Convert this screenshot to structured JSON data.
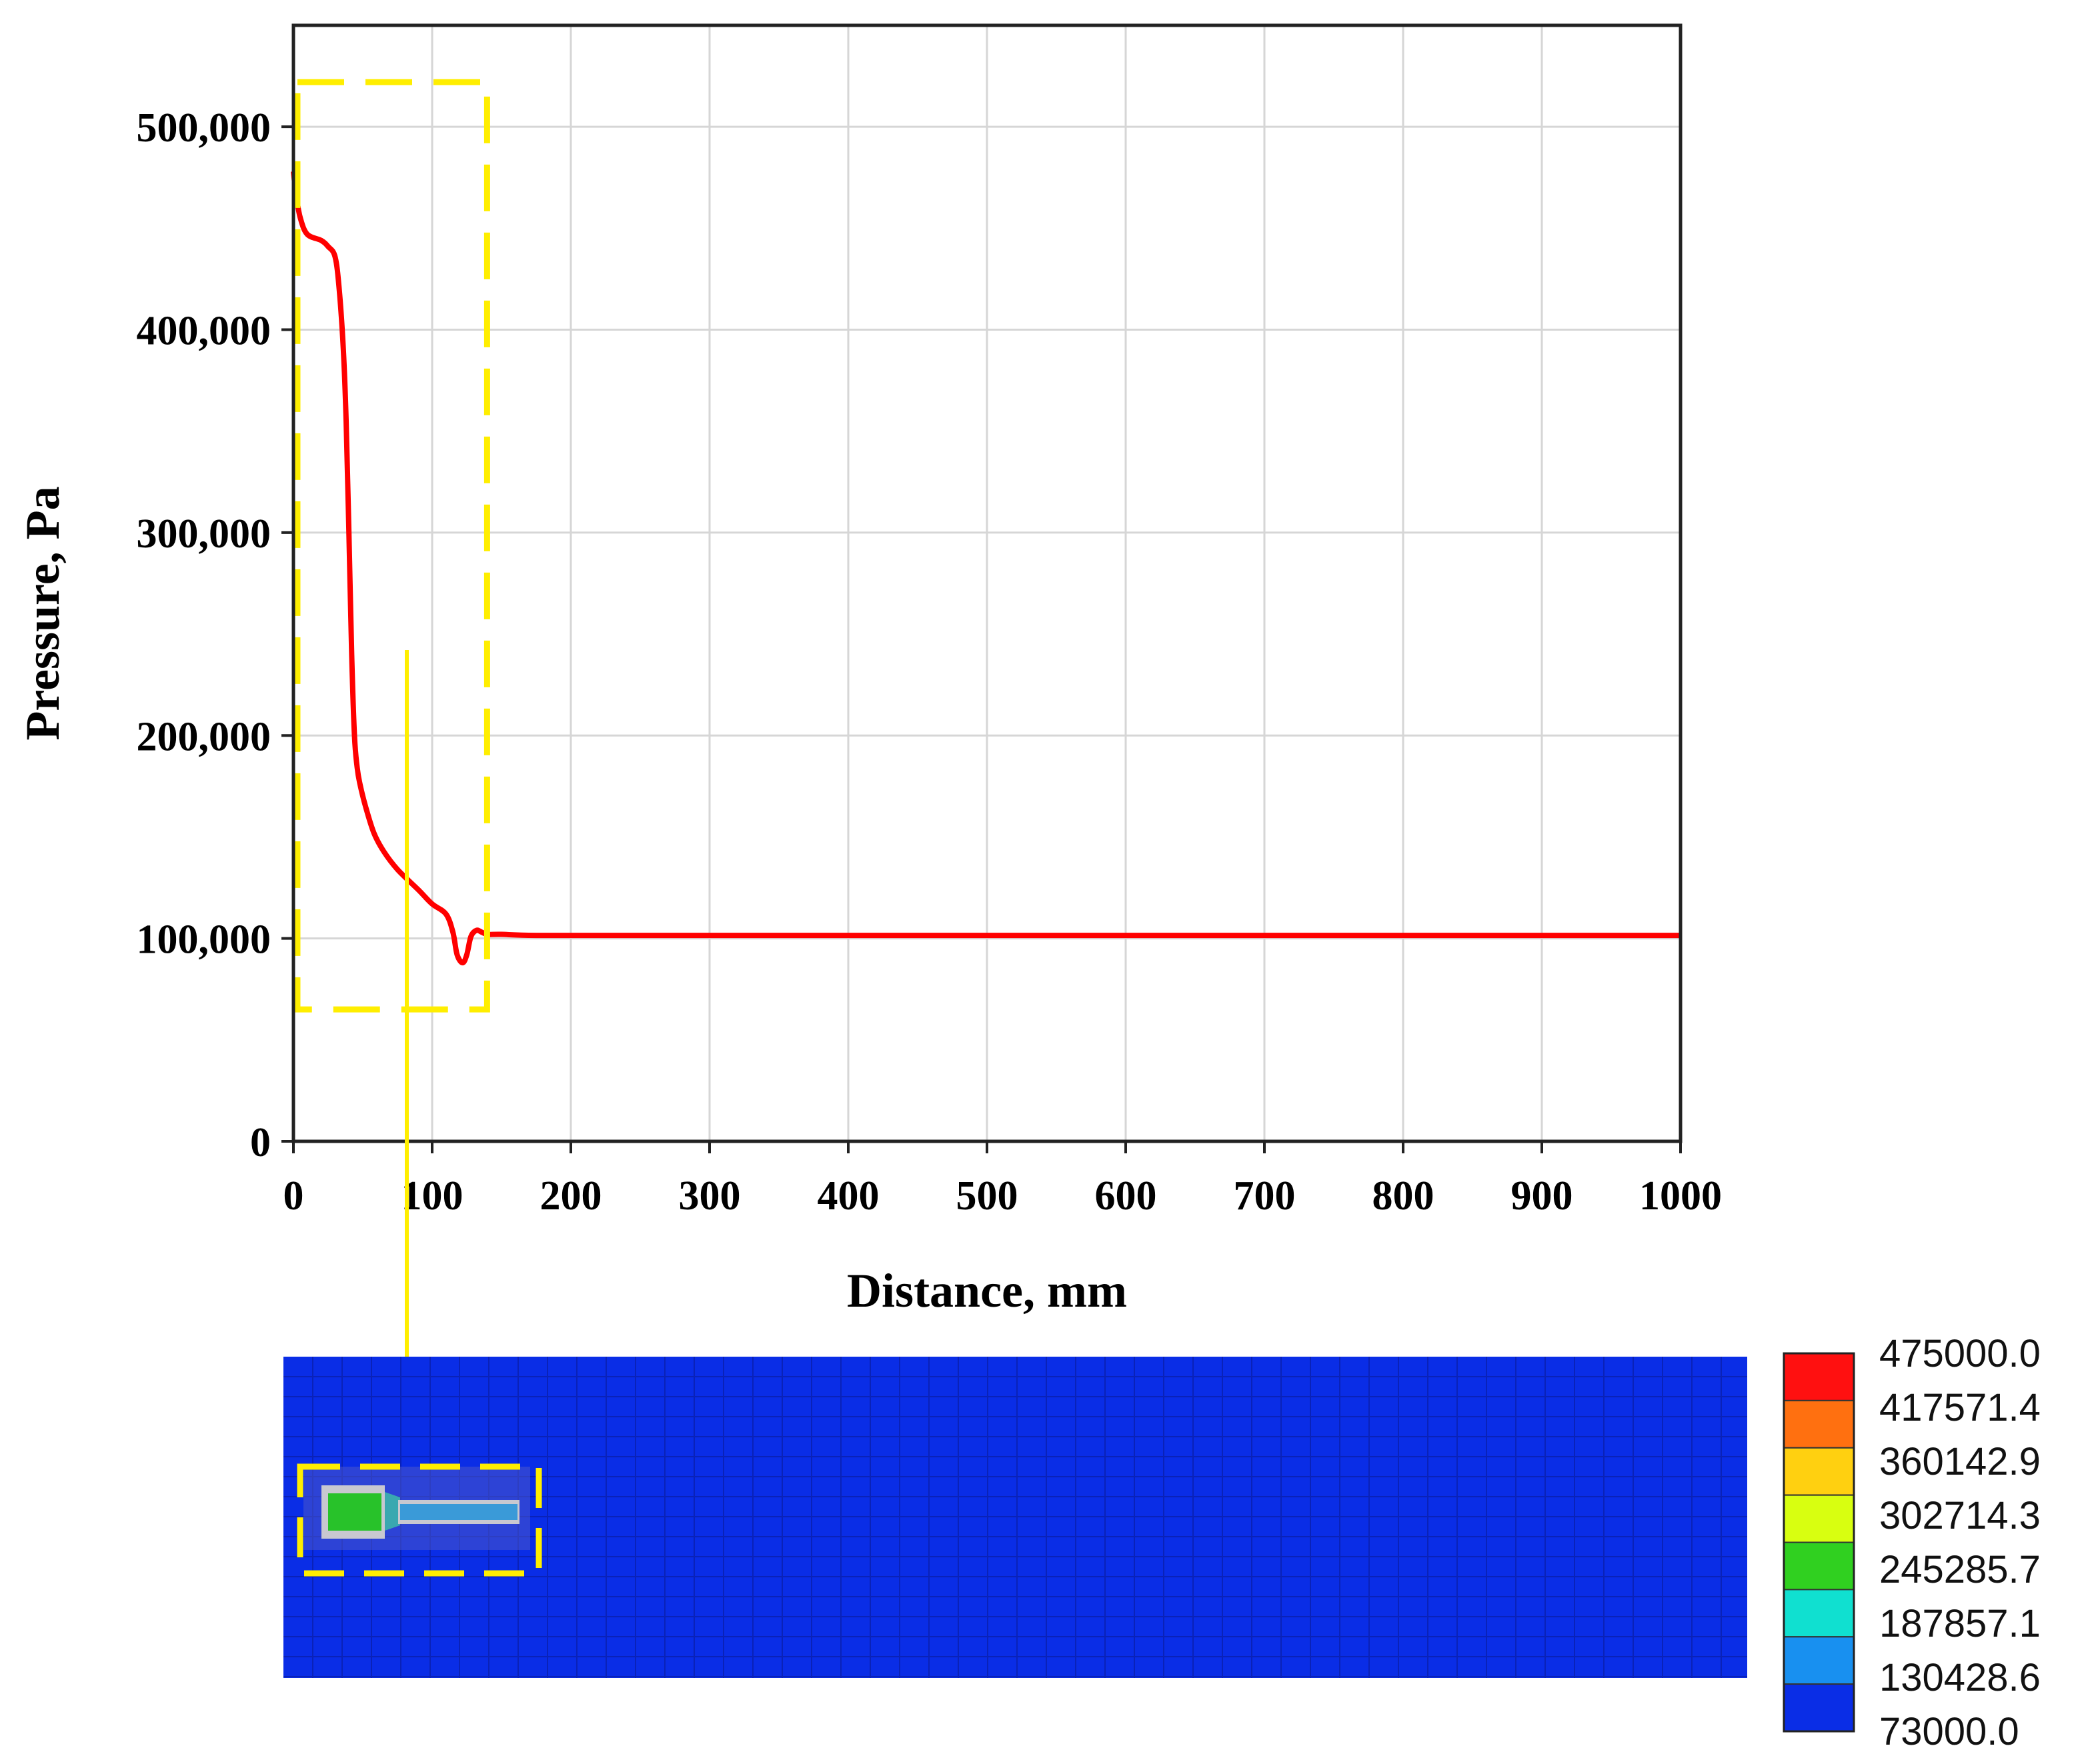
{
  "chart_data": {
    "type": "line",
    "xlabel": "Distance, mm",
    "ylabel": "Pressure, Pa",
    "xlim": [
      0,
      1000
    ],
    "ylim": [
      0,
      550000
    ],
    "xticks": [
      "0",
      "100",
      "200",
      "300",
      "400",
      "500",
      "600",
      "700",
      "800",
      "900",
      "1000"
    ],
    "yticks": [
      "0",
      "100,000",
      "200,000",
      "300,000",
      "400,000",
      "500,000"
    ],
    "grid": true,
    "series": [
      {
        "color": "#ff0000",
        "x": [
          0,
          2,
          5,
          10,
          20,
          25,
          30,
          33,
          36,
          38,
          40,
          42,
          44,
          46,
          48,
          52,
          58,
          65,
          75,
          90,
          100,
          110,
          115,
          118,
          122,
          125,
          128,
          132,
          136,
          140,
          150,
          175,
          250,
          500,
          1000
        ],
        "y": [
          478000,
          466000,
          455000,
          447000,
          444000,
          441000,
          436000,
          420000,
          390000,
          355000,
          300000,
          240000,
          200000,
          184000,
          176000,
          165000,
          152000,
          143000,
          134000,
          124000,
          117000,
          112000,
          103000,
          92000,
          88000,
          92000,
          101000,
          104000,
          103000,
          102000,
          102000,
          101500,
          101500,
          101500,
          101500
        ]
      }
    ],
    "annotation_box": {
      "x": [
        0,
        130
      ],
      "y": [
        65000,
        522000
      ],
      "color": "#ffee00"
    }
  },
  "contour": {
    "legend_values": [
      "475000.0",
      "417571.4",
      "360142.9",
      "302714.3",
      "245285.7",
      "187857.1",
      "130428.6",
      "73000.0"
    ],
    "legend_colors": [
      "#ff1010",
      "#ff7010",
      "#ffd010",
      "#d8ff10",
      "#30d020",
      "#10e0d0",
      "#1890f0",
      "#0a2de6"
    ],
    "background_color": "#0a2de6",
    "mesh_color": "#0a22b8",
    "highlight_color": "#ffee00"
  }
}
